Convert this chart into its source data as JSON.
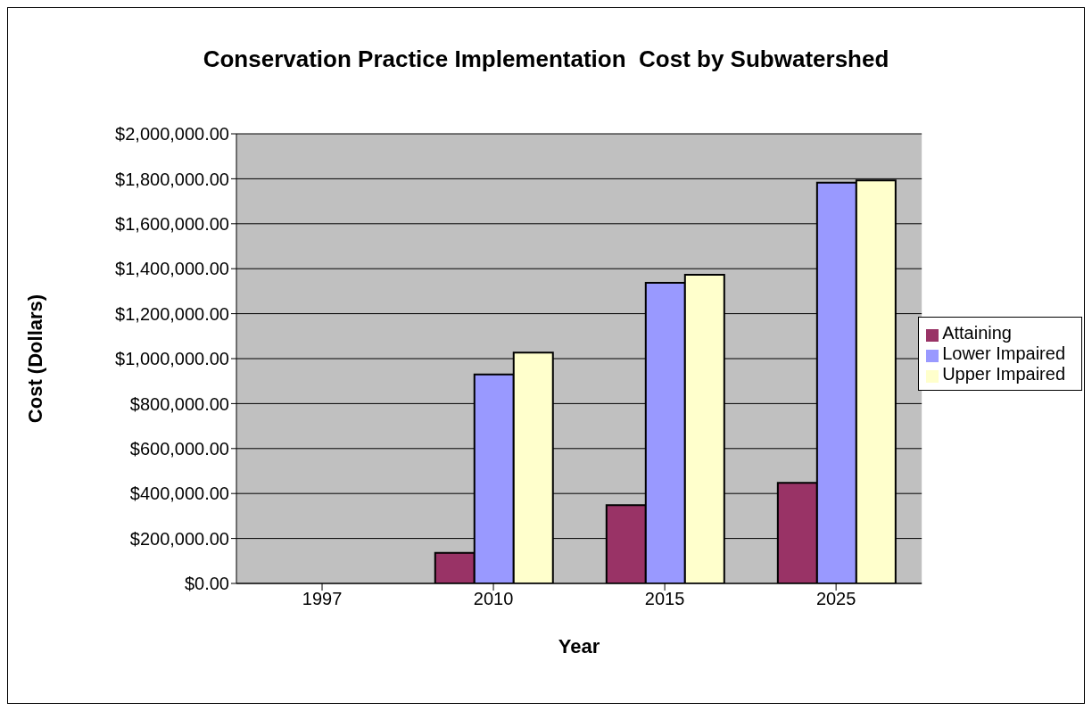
{
  "chart_data": {
    "type": "bar",
    "title": "Conservation Practice Implementation  Cost by Subwatershed",
    "xlabel": "Year",
    "ylabel": "Cost (Dollars)",
    "categories": [
      "1997",
      "2010",
      "2015",
      "2025"
    ],
    "series": [
      {
        "name": "Attaining",
        "color": "#993366",
        "values": [
          0,
          136000,
          348000,
          447000
        ]
      },
      {
        "name": "Lower Impaired",
        "color": "#9999ff",
        "values": [
          0,
          930000,
          1337000,
          1783000
        ]
      },
      {
        "name": "Upper Impaired",
        "color": "#ffffcc",
        "values": [
          0,
          1027000,
          1373000,
          1793000
        ]
      }
    ],
    "ylim": [
      0,
      2000000
    ],
    "yticks": [
      {
        "value": 0,
        "label": "$0.00"
      },
      {
        "value": 200000,
        "label": "$200,000.00"
      },
      {
        "value": 400000,
        "label": "$400,000.00"
      },
      {
        "value": 600000,
        "label": "$600,000.00"
      },
      {
        "value": 800000,
        "label": "$800,000.00"
      },
      {
        "value": 1000000,
        "label": "$1,000,000.00"
      },
      {
        "value": 1200000,
        "label": "$1,200,000.00"
      },
      {
        "value": 1400000,
        "label": "$1,400,000.00"
      },
      {
        "value": 1600000,
        "label": "$1,600,000.00"
      },
      {
        "value": 1800000,
        "label": "$1,800,000.00"
      },
      {
        "value": 2000000,
        "label": "$2,000,000.00"
      }
    ],
    "grid": "y",
    "legend": "right"
  }
}
